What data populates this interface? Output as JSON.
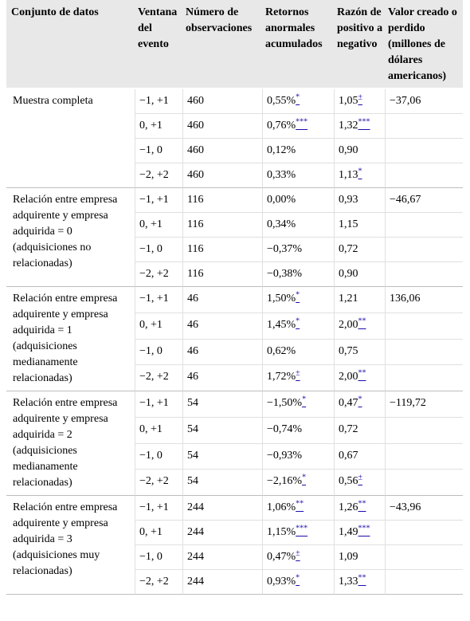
{
  "headers": {
    "dataset": "Conjunto de datos",
    "window": "Ventana del evento",
    "n_obs": "Número de observaciones",
    "car": "Retornos anormales acumulados",
    "ratio": "Razón de positivo a negativo",
    "value": "Valor creado o perdido (millones de dólares americanos)"
  },
  "groups": [
    {
      "label": "Muestra completa",
      "value": "−37,06",
      "rows": [
        {
          "window": "−1, +1",
          "n": "460",
          "car": "0,55%",
          "car_sig": "*",
          "ratio": "1,05",
          "ratio_sig": "±"
        },
        {
          "window": "0, +1",
          "n": "460",
          "car": "0,76%",
          "car_sig": "***",
          "ratio": "1,32",
          "ratio_sig": "***"
        },
        {
          "window": "−1, 0",
          "n": "460",
          "car": "0,12%",
          "car_sig": "",
          "ratio": "0,90",
          "ratio_sig": ""
        },
        {
          "window": "−2, +2",
          "n": "460",
          "car": "0,33%",
          "car_sig": "",
          "ratio": "1,13",
          "ratio_sig": "*"
        }
      ]
    },
    {
      "label": "Relación entre empresa adquirente y empresa adquirida = 0 (adquisiciones no relacionadas)",
      "value": "−46,67",
      "rows": [
        {
          "window": "−1, +1",
          "n": "116",
          "car": "0,00%",
          "car_sig": "",
          "ratio": "0,93",
          "ratio_sig": ""
        },
        {
          "window": "0, +1",
          "n": "116",
          "car": "0,34%",
          "car_sig": "",
          "ratio": "1,15",
          "ratio_sig": ""
        },
        {
          "window": "−1, 0",
          "n": "116",
          "car": "−0,37%",
          "car_sig": "",
          "ratio": "0,72",
          "ratio_sig": ""
        },
        {
          "window": "−2, +2",
          "n": "116",
          "car": "−0,38%",
          "car_sig": "",
          "ratio": "0,90",
          "ratio_sig": ""
        }
      ]
    },
    {
      "label": "Relación entre empresa adquirente y empresa adquirida = 1 (adquisiciones medianamente relacionadas)",
      "value": "136,06",
      "rows": [
        {
          "window": "−1, +1",
          "n": "46",
          "car": "1,50%",
          "car_sig": "*",
          "ratio": "1,21",
          "ratio_sig": ""
        },
        {
          "window": "0, +1",
          "n": "46",
          "car": "1,45%",
          "car_sig": "*",
          "ratio": "2,00",
          "ratio_sig": "**"
        },
        {
          "window": "−1, 0",
          "n": "46",
          "car": "0,62%",
          "car_sig": "",
          "ratio": "0,75",
          "ratio_sig": ""
        },
        {
          "window": "−2, +2",
          "n": "46",
          "car": "1,72%",
          "car_sig": "±",
          "ratio": "2,00",
          "ratio_sig": "**"
        }
      ]
    },
    {
      "label": "Relación entre empresa adquirente y empresa adquirida = 2 (adquisiciones medianamente relacionadas)",
      "value": "−119,72",
      "rows": [
        {
          "window": "−1, +1",
          "n": "54",
          "car": "−1,50%",
          "car_sig": "*",
          "ratio": "0,47",
          "ratio_sig": "*"
        },
        {
          "window": "0, +1",
          "n": "54",
          "car": "−0,74%",
          "car_sig": "",
          "ratio": "0,72",
          "ratio_sig": ""
        },
        {
          "window": "−1, 0",
          "n": "54",
          "car": "−0,93%",
          "car_sig": "",
          "ratio": "0,67",
          "ratio_sig": ""
        },
        {
          "window": "−2, +2",
          "n": "54",
          "car": "−2,16%",
          "car_sig": "*",
          "ratio": "0,56",
          "ratio_sig": "±"
        }
      ]
    },
    {
      "label": "Relación entre empresa adquirente y empresa adquirida = 3 (adquisiciones muy relacionadas)",
      "value": "−43,96",
      "rows": [
        {
          "window": "−1, +1",
          "n": "244",
          "car": "1,06%",
          "car_sig": "**",
          "ratio": "1,26",
          "ratio_sig": "**"
        },
        {
          "window": "0, +1",
          "n": "244",
          "car": "1,15%",
          "car_sig": "***",
          "ratio": "1,49",
          "ratio_sig": "***"
        },
        {
          "window": "−1, 0",
          "n": "244",
          "car": "0,47%",
          "car_sig": "±",
          "ratio": "1,09",
          "ratio_sig": ""
        },
        {
          "window": "−2, +2",
          "n": "244",
          "car": "0,93%",
          "car_sig": "*",
          "ratio": "1,33",
          "ratio_sig": "**"
        }
      ]
    }
  ]
}
